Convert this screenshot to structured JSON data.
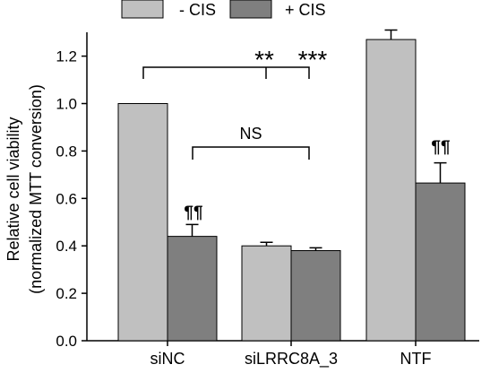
{
  "chart_data": {
    "type": "bar",
    "categories": [
      "siNC",
      "siLRRC8A_3",
      "NTF"
    ],
    "series": [
      {
        "name": "- CIS",
        "values": [
          1.0,
          0.4,
          1.27
        ],
        "errors": [
          0.0,
          0.015,
          0.04
        ],
        "color": "#c0c0c0"
      },
      {
        "name": "+ CIS",
        "values": [
          0.44,
          0.38,
          0.665
        ],
        "errors": [
          0.05,
          0.012,
          0.085
        ],
        "color": "#7f7f7f"
      }
    ],
    "ylabel_line1": "Relative cell viability",
    "ylabel_line2": "(normalized MTT conversion)",
    "xlabel": "",
    "ylim": [
      0.0,
      1.3
    ],
    "yticks": [
      0.0,
      0.2,
      0.4,
      0.6,
      0.8,
      1.0,
      1.2
    ],
    "tick_labels": [
      "0.0",
      "0.2",
      "0.4",
      "0.6",
      "0.8",
      "1.0",
      "1.2"
    ],
    "legend_position": "top",
    "annotations": {
      "sig_double": "**",
      "sig_triple": "***",
      "ns": "NS",
      "para_sinc": "¶¶",
      "para_ntf": "¶¶"
    }
  }
}
